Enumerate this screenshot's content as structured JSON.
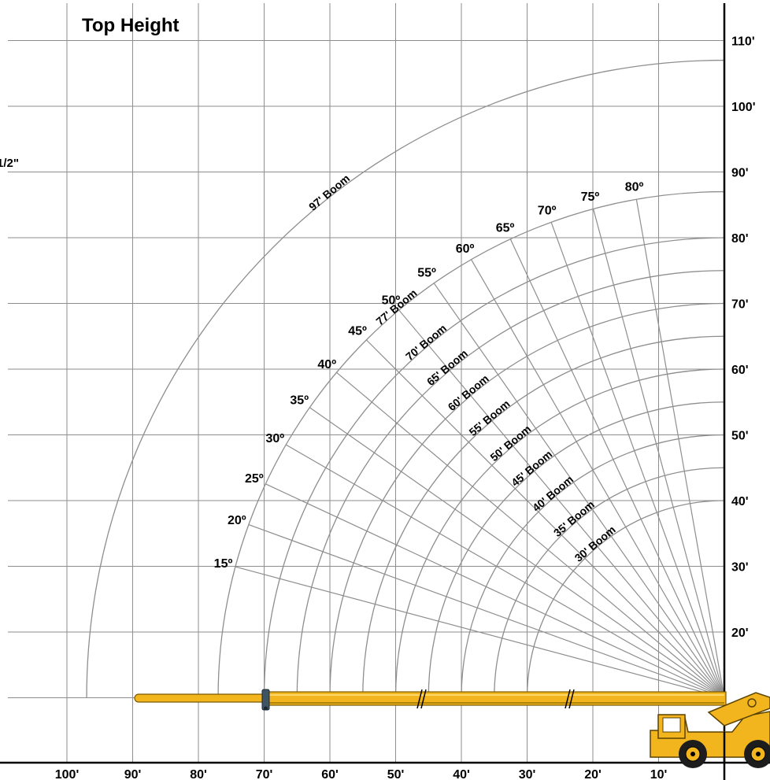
{
  "title": "Top Height",
  "edge_note": "1/2\"",
  "chart_data": {
    "type": "range-diagram",
    "title": "Top Height",
    "x_unit": "ft",
    "y_unit": "ft",
    "x_ticks": [
      "100'",
      "90'",
      "80'",
      "70'",
      "60'",
      "50'",
      "40'",
      "30'",
      "20'",
      "10'"
    ],
    "x_tick_values": [
      100,
      90,
      80,
      70,
      60,
      50,
      40,
      30,
      20,
      10
    ],
    "y_ticks": [
      "110'",
      "100'",
      "90'",
      "80'",
      "70'",
      "60'",
      "50'",
      "40'",
      "30'",
      "20'"
    ],
    "y_tick_values": [
      110,
      100,
      90,
      80,
      70,
      60,
      50,
      40,
      30,
      20
    ],
    "xlim": [
      0,
      110
    ],
    "ylim": [
      0,
      118
    ],
    "grid": true,
    "pivot": {
      "x": 0,
      "y": 10
    },
    "booms": [
      {
        "label": "97' Boom",
        "length": 97
      },
      {
        "label": "77' Boom",
        "length": 77
      },
      {
        "label": "70' Boom",
        "length": 70
      },
      {
        "label": "65' Boom",
        "length": 65
      },
      {
        "label": "60' Boom",
        "length": 60
      },
      {
        "label": "55' Boom",
        "length": 55
      },
      {
        "label": "50' Boom",
        "length": 50
      },
      {
        "label": "45' Boom",
        "length": 45
      },
      {
        "label": "40' Boom",
        "length": 40
      },
      {
        "label": "35' Boom",
        "length": 35
      },
      {
        "label": "30' Boom",
        "length": 30
      }
    ],
    "angles": [
      {
        "label": "15º",
        "deg": 15
      },
      {
        "label": "20º",
        "deg": 20
      },
      {
        "label": "25º",
        "deg": 25
      },
      {
        "label": "30º",
        "deg": 30
      },
      {
        "label": "35º",
        "deg": 35
      },
      {
        "label": "40º",
        "deg": 40
      },
      {
        "label": "45º",
        "deg": 45
      },
      {
        "label": "50º",
        "deg": 50
      },
      {
        "label": "55º",
        "deg": 55
      },
      {
        "label": "60º",
        "deg": 60
      },
      {
        "label": "65º",
        "deg": 65
      },
      {
        "label": "70º",
        "deg": 70
      },
      {
        "label": "75º",
        "deg": 75
      },
      {
        "label": "80º",
        "deg": 80
      }
    ],
    "colors": {
      "boom": "#f2b51e",
      "boom_outline": "#7a5a00",
      "grid": "#8e8e8e",
      "axis": "#000000"
    }
  }
}
